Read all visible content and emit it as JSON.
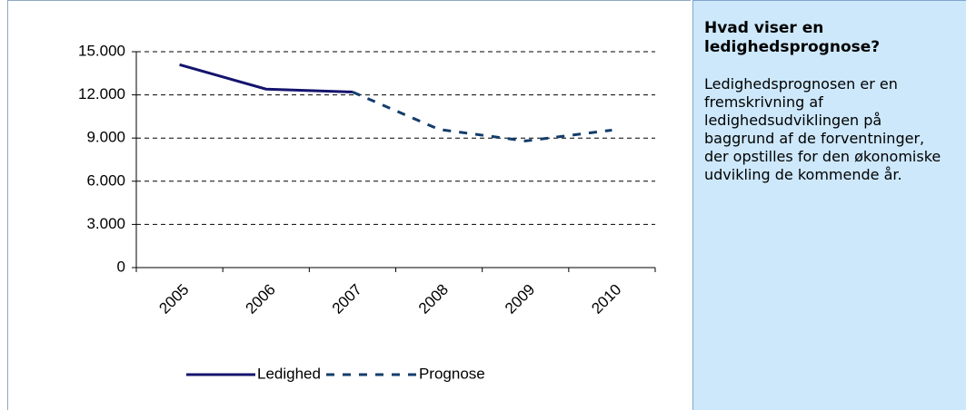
{
  "chart_data": {
    "type": "line",
    "categories": [
      "2005",
      "2006",
      "2007",
      "2008",
      "2009",
      "2010"
    ],
    "series": [
      {
        "name": "Ledighed",
        "color": "#14146e",
        "values": [
          14100,
          12400,
          12200,
          null,
          null,
          null
        ]
      },
      {
        "name": "Prognose",
        "color": "#133d6b",
        "dashed": true,
        "values": [
          null,
          null,
          12200,
          9600,
          8800,
          9550
        ]
      }
    ],
    "ylim": [
      0,
      15000
    ],
    "yticks": [
      0,
      {
        "value": 3000,
        "label": "3.000"
      },
      {
        "value": 6000,
        "label": "6.000"
      },
      {
        "value": 9000,
        "label": "9.000"
      },
      {
        "value": 12000,
        "label": "12.000"
      },
      {
        "value": 15000,
        "label": "15.000"
      }
    ],
    "grid": true,
    "legend": "bottom"
  },
  "info_panel": {
    "title": "Hvad viser en ledighedsprognose?",
    "text": "Ledighedsprognosen er en fremskrivning af ledighedsudviklingen på baggrund af de forventninger, der opstilles for den økonomiske udvikling de kommende år."
  }
}
